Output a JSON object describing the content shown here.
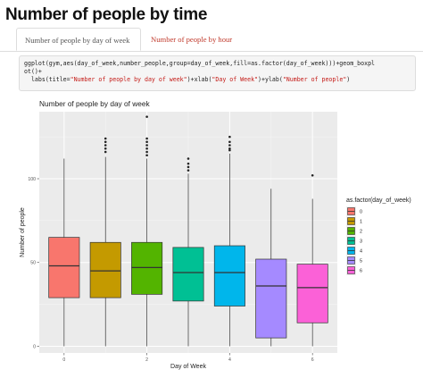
{
  "page": {
    "title": "Number of people by time"
  },
  "tabs": [
    {
      "label": "Number of people by day of week",
      "active": true
    },
    {
      "label": "Number of people by hour",
      "active": false
    }
  ],
  "code": {
    "line1": "ggplot(gym,aes(day_of_week,number_people,group=day_of_week,fill=as.factor(day_of_week)))+geom_boxpl",
    "line2": "ot()+",
    "line3_a": "  labs(title=",
    "line3_s1": "\"Number of people by day of week\"",
    "line3_b": ")+xlab(",
    "line3_s2": "\"Day of Week\"",
    "line3_c": ")+ylab(",
    "line3_s3": "\"Number of people\"",
    "line3_d": ")"
  },
  "colors": {
    "accent_link": "#c0392b",
    "panel_bg": "#ebebeb"
  },
  "chart_data": {
    "type": "boxplot",
    "title": "Number of people by day of week",
    "xlabel": "Day of Week",
    "ylabel": "Number of people",
    "x_ticks": [
      0,
      2,
      4,
      6
    ],
    "y_ticks": [
      0,
      50,
      100
    ],
    "xlim": [
      -0.6,
      6.6
    ],
    "ylim": [
      -4,
      140
    ],
    "legend": {
      "title": "as.factor(day_of_week)",
      "position": "right"
    },
    "boxes": [
      {
        "category": "0",
        "min": 0,
        "q1": 29,
        "median": 48,
        "q3": 65,
        "max": 112,
        "outliers": [],
        "color": "#F8766D"
      },
      {
        "category": "1",
        "min": 0,
        "q1": 29,
        "median": 45,
        "q3": 62,
        "max": 113,
        "outliers": [
          116,
          118,
          120,
          122,
          124
        ],
        "color": "#C49A00"
      },
      {
        "category": "2",
        "min": 0,
        "q1": 31,
        "median": 47,
        "q3": 62,
        "max": 112,
        "outliers": [
          114,
          116,
          118,
          120,
          122,
          124,
          137
        ],
        "color": "#53B400"
      },
      {
        "category": "3",
        "min": 0,
        "q1": 27,
        "median": 44,
        "q3": 59,
        "max": 103,
        "outliers": [
          105,
          107,
          109,
          112
        ],
        "color": "#00C094"
      },
      {
        "category": "4",
        "min": 0,
        "q1": 24,
        "median": 44,
        "q3": 60,
        "max": 115,
        "outliers": [
          117,
          118,
          120,
          122,
          125
        ],
        "color": "#00B6EB"
      },
      {
        "category": "5",
        "min": 0,
        "q1": 5,
        "median": 36,
        "q3": 52,
        "max": 94,
        "outliers": [],
        "color": "#A58AFF"
      },
      {
        "category": "6",
        "min": 0,
        "q1": 14,
        "median": 35,
        "q3": 49,
        "max": 88,
        "outliers": [
          102
        ],
        "color": "#FB61D7"
      }
    ]
  }
}
